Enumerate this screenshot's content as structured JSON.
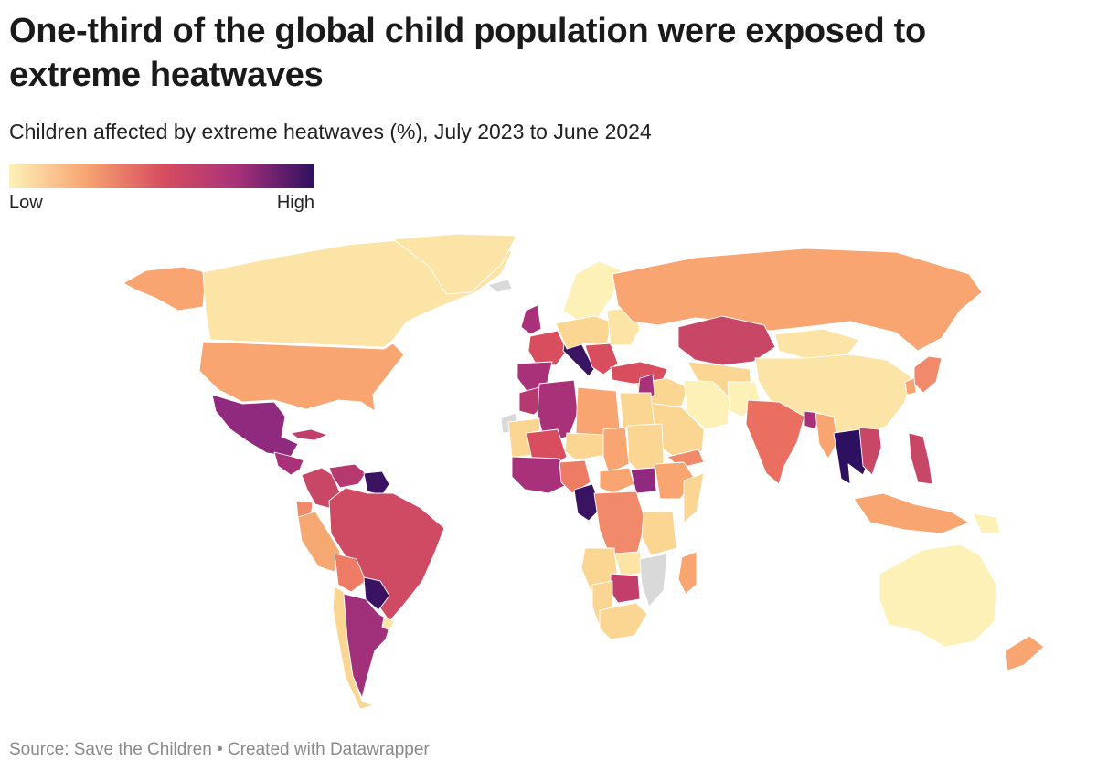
{
  "header": {
    "title": "One-third of the global child population were exposed to extreme heatwaves",
    "subtitle": "Children affected by extreme heatwaves (%), July 2023 to June 2024"
  },
  "legend": {
    "low_label": "Low",
    "high_label": "High",
    "gradient": [
      "#fdf1b8",
      "#f8a572",
      "#d84e5f",
      "#a8317a",
      "#2d1160"
    ]
  },
  "map": {
    "type": "choropleth",
    "no_data_color": "#d9d9d9",
    "regions": [
      {
        "name": "Alaska",
        "fill": "#f8a572"
      },
      {
        "name": "Canada",
        "fill": "#fbe4a5"
      },
      {
        "name": "Greenland",
        "fill": "#fbe4a5"
      },
      {
        "name": "United States",
        "fill": "#f8a572"
      },
      {
        "name": "Mexico",
        "fill": "#8f2a7e"
      },
      {
        "name": "Central America",
        "fill": "#a8317a"
      },
      {
        "name": "Cuba",
        "fill": "#c23f6c"
      },
      {
        "name": "Colombia",
        "fill": "#c94766"
      },
      {
        "name": "Venezuela",
        "fill": "#b5386f"
      },
      {
        "name": "Guianas",
        "fill": "#3a1362"
      },
      {
        "name": "Ecuador",
        "fill": "#f08a6a"
      },
      {
        "name": "Peru",
        "fill": "#f6a873"
      },
      {
        "name": "Brazil",
        "fill": "#cf4b63"
      },
      {
        "name": "Bolivia",
        "fill": "#ee7c65"
      },
      {
        "name": "Paraguay",
        "fill": "#3a1362"
      },
      {
        "name": "Chile",
        "fill": "#fbd592"
      },
      {
        "name": "Argentina",
        "fill": "#a0307a"
      },
      {
        "name": "Uruguay",
        "fill": "#fbe4a5"
      },
      {
        "name": "Scandinavia",
        "fill": "#fdf1b8"
      },
      {
        "name": "Iceland",
        "fill": "#d9d9d9"
      },
      {
        "name": "United Kingdom",
        "fill": "#a8317a"
      },
      {
        "name": "France",
        "fill": "#d84e5f"
      },
      {
        "name": "Iberia",
        "fill": "#a8317a"
      },
      {
        "name": "Italy",
        "fill": "#3a1362"
      },
      {
        "name": "Central Europe",
        "fill": "#fbd592"
      },
      {
        "name": "Balkans",
        "fill": "#d84e5f"
      },
      {
        "name": "Eastern Europe",
        "fill": "#fbe4a5"
      },
      {
        "name": "Turkey",
        "fill": "#d84e5f"
      },
      {
        "name": "Russia",
        "fill": "#f8a572"
      },
      {
        "name": "Kazakhstan",
        "fill": "#c94766"
      },
      {
        "name": "Central Asia",
        "fill": "#fbd592"
      },
      {
        "name": "Mongolia",
        "fill": "#fbe4a5"
      },
      {
        "name": "China",
        "fill": "#fbe4a5"
      },
      {
        "name": "Japan",
        "fill": "#f08a6a"
      },
      {
        "name": "Korea",
        "fill": "#f8a572"
      },
      {
        "name": "Middle East",
        "fill": "#fbd592"
      },
      {
        "name": "Levant",
        "fill": "#a8317a"
      },
      {
        "name": "Iran",
        "fill": "#fdf1b8"
      },
      {
        "name": "Afghanistan",
        "fill": "#fdf1b8"
      },
      {
        "name": "Arabia",
        "fill": "#fbd592"
      },
      {
        "name": "Yemen",
        "fill": "#f08a6a"
      },
      {
        "name": "India",
        "fill": "#ea6f61"
      },
      {
        "name": "Bangladesh",
        "fill": "#a8317a"
      },
      {
        "name": "Myanmar",
        "fill": "#f8a572"
      },
      {
        "name": "Thailand",
        "fill": "#2d1160"
      },
      {
        "name": "Vietnam",
        "fill": "#c94766"
      },
      {
        "name": "Philippines",
        "fill": "#c94766"
      },
      {
        "name": "Indonesia",
        "fill": "#f8a572"
      },
      {
        "name": "Papua New Guinea",
        "fill": "#fdf1b8"
      },
      {
        "name": "Australia",
        "fill": "#fdf1b8"
      },
      {
        "name": "New Zealand",
        "fill": "#f8a572"
      },
      {
        "name": "Morocco",
        "fill": "#b5386f"
      },
      {
        "name": "Algeria",
        "fill": "#a8317a"
      },
      {
        "name": "Libya",
        "fill": "#f8a572"
      },
      {
        "name": "Egypt",
        "fill": "#fbd592"
      },
      {
        "name": "Western Sahara",
        "fill": "#d9d9d9"
      },
      {
        "name": "Mauritania",
        "fill": "#fbd592"
      },
      {
        "name": "Mali",
        "fill": "#d84e5f"
      },
      {
        "name": "Niger",
        "fill": "#fbd592"
      },
      {
        "name": "Chad",
        "fill": "#f8a572"
      },
      {
        "name": "Sudan",
        "fill": "#fbd592"
      },
      {
        "name": "West Africa Coast",
        "fill": "#a8317a"
      },
      {
        "name": "Nigeria",
        "fill": "#ee7c65"
      },
      {
        "name": "Cameroon",
        "fill": "#3a1362"
      },
      {
        "name": "Central African Republic",
        "fill": "#f8a572"
      },
      {
        "name": "South Sudan",
        "fill": "#8f2a7e"
      },
      {
        "name": "Ethiopia",
        "fill": "#f8a572"
      },
      {
        "name": "Somalia",
        "fill": "#fbd592"
      },
      {
        "name": "DR Congo",
        "fill": "#f08a6a"
      },
      {
        "name": "Angola",
        "fill": "#fbd592"
      },
      {
        "name": "Zambia",
        "fill": "#fbe4a5"
      },
      {
        "name": "Tanzania",
        "fill": "#fbd592"
      },
      {
        "name": "Mozambique",
        "fill": "#d9d9d9"
      },
      {
        "name": "Zimbabwe",
        "fill": "#c23f6c"
      },
      {
        "name": "Namibia",
        "fill": "#fbd592"
      },
      {
        "name": "South Africa",
        "fill": "#fbd592"
      },
      {
        "name": "Madagascar",
        "fill": "#f8a572"
      }
    ]
  },
  "footer": {
    "source": "Source: Save the Children • Created with Datawrapper"
  }
}
